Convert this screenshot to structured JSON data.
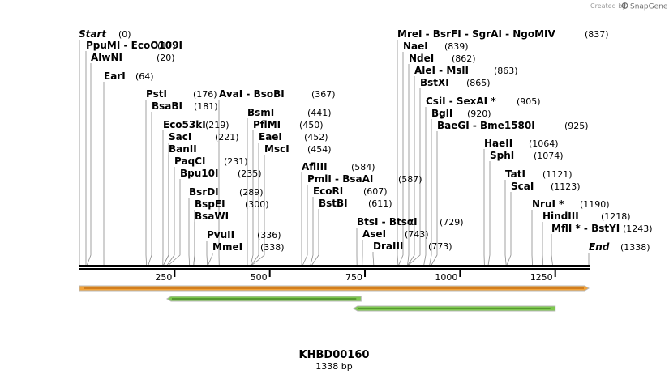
{
  "header": {
    "created_by": "Created by",
    "brand": "SnapGene"
  },
  "map": {
    "title": "KHBD00160",
    "length_label": "1338 bp",
    "sequence_length": 1338,
    "ruler_ticks": [
      250,
      500,
      750,
      1000,
      1250
    ],
    "start_label": "Start",
    "start_pos": "(0)",
    "end_label": "End",
    "end_pos": "(1338)"
  },
  "labels": [
    {
      "text": "PpuMI - EcoO109I",
      "pos": "(17)",
      "cut": 17
    },
    {
      "text": "AlwNI",
      "pos": "(20)",
      "cut": 20
    },
    {
      "text": "EarI",
      "pos": "(64)",
      "cut": 64
    },
    {
      "text": "PstI",
      "pos": "(176)",
      "cut": 176
    },
    {
      "text": "BsaBI",
      "pos": "(181)",
      "cut": 181
    },
    {
      "text": "Eco53kI",
      "pos": "(219)",
      "cut": 219
    },
    {
      "text": "SacI",
      "pos": "(221)",
      "cut": 221
    },
    {
      "text": "BanII",
      "pos": "",
      "cut": 221
    },
    {
      "text": "PaqCI",
      "pos": "(231)",
      "cut": 231
    },
    {
      "text": "Bpu10I",
      "pos": "(235)",
      "cut": 235
    },
    {
      "text": "BsrDI",
      "pos": "(289)",
      "cut": 289
    },
    {
      "text": "BspEI",
      "pos": "(300)",
      "cut": 300
    },
    {
      "text": "BsaWI",
      "pos": "",
      "cut": 300
    },
    {
      "text": "PvuII",
      "pos": "(336)",
      "cut": 336
    },
    {
      "text": "MmeI",
      "pos": "(338)",
      "cut": 338
    },
    {
      "text": "AvaI - BsoBI",
      "pos": "(367)",
      "cut": 367
    },
    {
      "text": "BsmI",
      "pos": "(441)",
      "cut": 441
    },
    {
      "text": "PflMI",
      "pos": "(450)",
      "cut": 450
    },
    {
      "text": "EaeI",
      "pos": "(452)",
      "cut": 452
    },
    {
      "text": "MscI",
      "pos": "(454)",
      "cut": 454
    },
    {
      "text": "AflIII",
      "pos": "(584)",
      "cut": 584
    },
    {
      "text": "PmlI - BsaAI",
      "pos": "(587)",
      "cut": 587
    },
    {
      "text": "EcoRI",
      "pos": "(607)",
      "cut": 607
    },
    {
      "text": "BstBI",
      "pos": "(611)",
      "cut": 611
    },
    {
      "text": "BtsI - BtsαI",
      "pos": "(729)",
      "cut": 729
    },
    {
      "text": "AseI",
      "pos": "(743)",
      "cut": 743
    },
    {
      "text": "DraIII",
      "pos": "(773)",
      "cut": 773
    },
    {
      "text": "MreI - BsrFI - SgrAI - NgoMIV",
      "pos": "(837)",
      "cut": 837
    },
    {
      "text": "NaeI",
      "pos": "(839)",
      "cut": 839
    },
    {
      "text": "NdeI",
      "pos": "(862)",
      "cut": 862
    },
    {
      "text": "AleI - MslI",
      "pos": "(863)",
      "cut": 863
    },
    {
      "text": "BstXI",
      "pos": "(865)",
      "cut": 865
    },
    {
      "text": "CsiI - SexAI *",
      "pos": "(905)",
      "cut": 905
    },
    {
      "text": "BglI",
      "pos": "(920)",
      "cut": 920
    },
    {
      "text": "BaeGI - Bme1580I",
      "pos": "(925)",
      "cut": 925
    },
    {
      "text": "HaeII",
      "pos": "(1064)",
      "cut": 1064
    },
    {
      "text": "SphI",
      "pos": "(1074)",
      "cut": 1074
    },
    {
      "text": "TatI",
      "pos": "(1121)",
      "cut": 1121
    },
    {
      "text": "ScaI",
      "pos": "(1123)",
      "cut": 1123
    },
    {
      "text": "NruI *",
      "pos": "(1190)",
      "cut": 1190
    },
    {
      "text": "HindIII",
      "pos": "(1218)",
      "cut": 1218
    },
    {
      "text": "MflI * - BstYI",
      "pos": "(1243)",
      "cut": 1243
    }
  ],
  "features": [
    {
      "name": "orange-feature",
      "start": 0,
      "end": 1338,
      "direction": "forward",
      "color": "#f2a33a"
    },
    {
      "name": "green-feature-1",
      "start": 230,
      "end": 740,
      "direction": "reverse",
      "color": "#7ec850"
    },
    {
      "name": "green-feature-2",
      "start": 720,
      "end": 1250,
      "direction": "reverse",
      "color": "#7ec850"
    }
  ],
  "colors": {
    "backbone": "#000000",
    "feature_border": "#b8b8b8"
  }
}
